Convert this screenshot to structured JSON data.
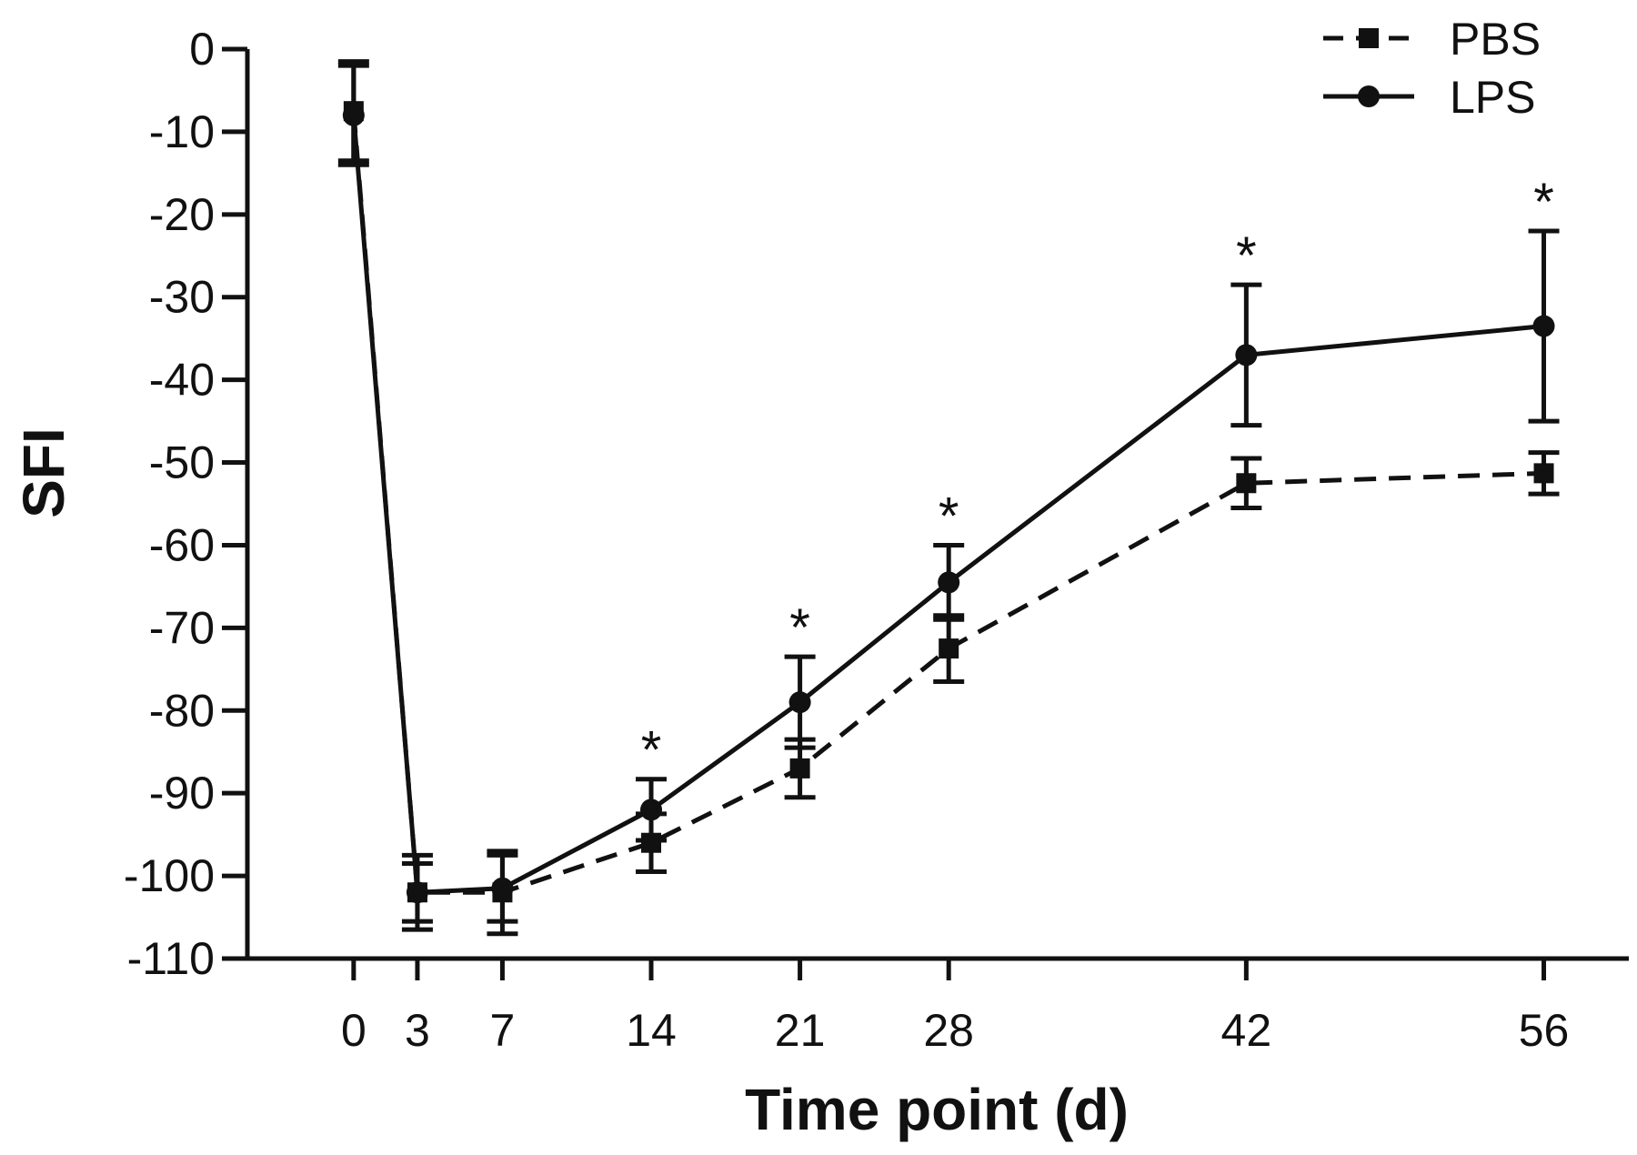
{
  "chart_data": {
    "type": "line",
    "title": "",
    "xlabel": "Time point (d)",
    "ylabel": "SFI",
    "x": [
      0,
      3,
      7,
      14,
      21,
      28,
      42,
      56
    ],
    "xticks": [
      "0",
      "3",
      "7",
      "14",
      "21",
      "28",
      "42",
      "56"
    ],
    "xlim": [
      -5,
      60
    ],
    "ylim": [
      -110,
      0
    ],
    "yticks": [
      "0",
      "-10",
      "-20",
      "-30",
      "-40",
      "-50",
      "-60",
      "-70",
      "-80",
      "-90",
      "-100",
      "-110"
    ],
    "grid": false,
    "legend_position": "top-right",
    "series": [
      {
        "name": "PBS",
        "style": "dashed",
        "marker": "square",
        "values": [
          -7.5,
          -102,
          -102,
          -96,
          -87,
          -72.5,
          -52.5,
          -51.3
        ],
        "errors": [
          6,
          3.5,
          5,
          3.5,
          3.5,
          4,
          3,
          2.5
        ]
      },
      {
        "name": "LPS",
        "style": "solid",
        "marker": "circle",
        "values": [
          -8,
          -102,
          -101.5,
          -92,
          -79,
          -64.5,
          -37,
          -33.5
        ],
        "errors": [
          6,
          4.5,
          4,
          3.7,
          5.5,
          4.5,
          8.5,
          11.5
        ]
      }
    ],
    "annotations": [
      {
        "x": 14,
        "text": "*"
      },
      {
        "x": 21,
        "text": "*"
      },
      {
        "x": 28,
        "text": "*"
      },
      {
        "x": 42,
        "text": "*"
      },
      {
        "x": 56,
        "text": "*"
      }
    ],
    "colors": {
      "line": "#111111"
    }
  }
}
